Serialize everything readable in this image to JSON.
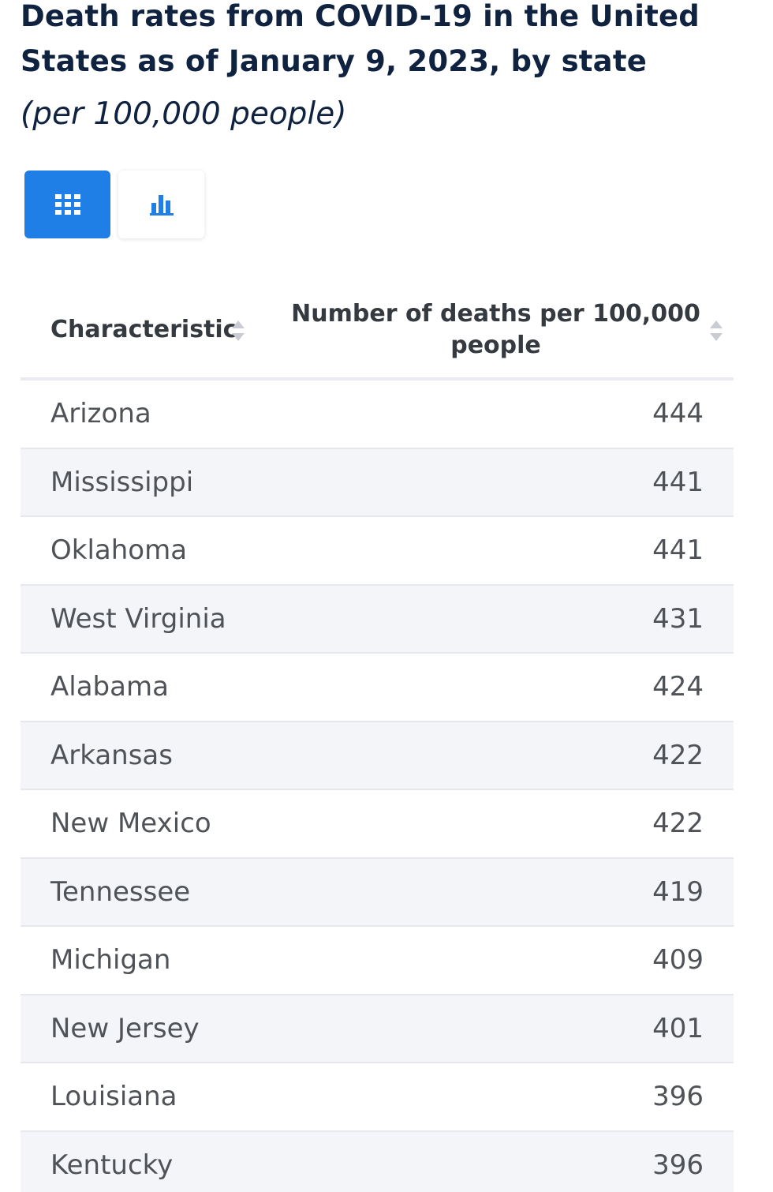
{
  "title": "Death rates from COVID-19 in the United States as of January 9, 2023, by state",
  "subtitle": "(per 100,000 people)",
  "view_toggle": {
    "active": "table",
    "accent_color": "#1f7fe6",
    "icons": [
      "table-grid-icon",
      "bar-chart-icon"
    ]
  },
  "chart_data": {
    "type": "table",
    "title": "Death rates from COVID-19 in the United States as of January 9, 2023, by state",
    "subtitle": "(per 100,000 people)",
    "columns": [
      "Characteristic",
      "Number of deaths per 100,000 people"
    ],
    "categories": [
      "Arizona",
      "Mississippi",
      "Oklahoma",
      "West Virginia",
      "Alabama",
      "Arkansas",
      "New Mexico",
      "Tennessee",
      "Michigan",
      "New Jersey",
      "Louisiana",
      "Kentucky"
    ],
    "values": [
      444,
      441,
      441,
      431,
      424,
      422,
      422,
      419,
      409,
      401,
      396,
      396
    ]
  }
}
